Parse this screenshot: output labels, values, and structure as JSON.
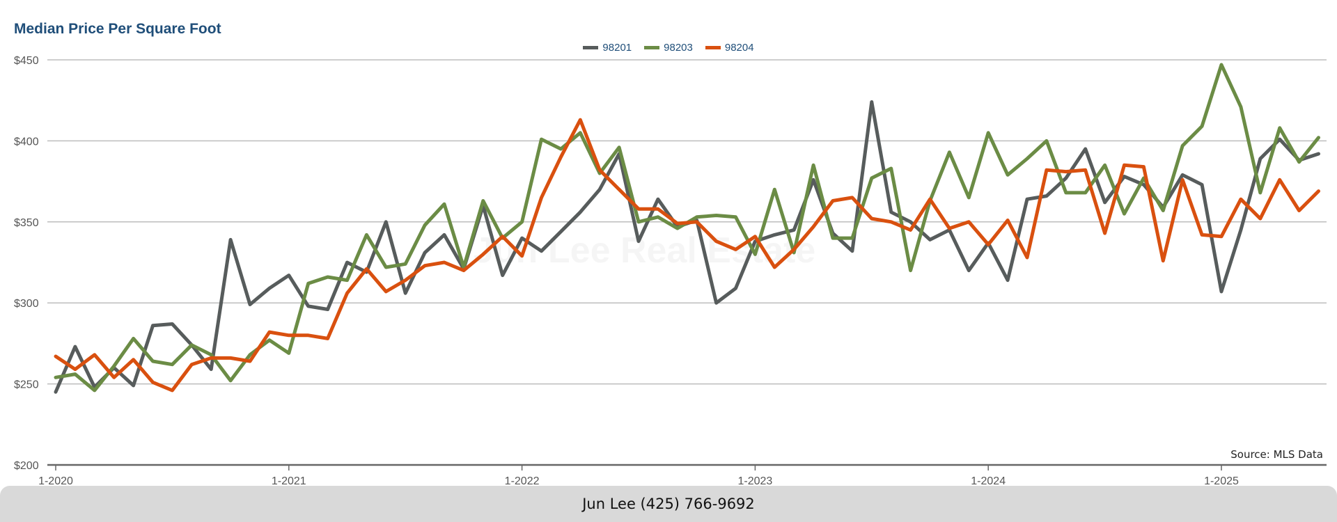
{
  "chart_data": {
    "type": "line",
    "title": "Median Price Per Square Foot",
    "ylim": [
      200,
      450
    ],
    "y_ticks": [
      "$200",
      "$250",
      "$300",
      "$350",
      "$400",
      "$450"
    ],
    "y_tick_values": [
      200,
      250,
      300,
      350,
      400,
      450
    ],
    "x_tick_labels": [
      "1-2020",
      "1-2021",
      "1-2022",
      "1-2023",
      "1-2024",
      "1-2025"
    ],
    "x_start": "1-2020",
    "x_interval": "monthly",
    "legend_position": "top-center",
    "grid": "horizontal",
    "series": [
      {
        "name": "98201",
        "color": "#575c5c",
        "values": [
          245,
          273,
          248,
          260,
          249,
          286,
          287,
          274,
          259,
          339,
          299,
          309,
          317,
          298,
          296,
          325,
          319,
          350,
          306,
          331,
          342,
          321,
          360,
          317,
          340,
          332,
          344,
          356,
          370,
          392,
          338,
          364,
          347,
          351,
          300,
          309,
          338,
          342,
          345,
          376,
          343,
          332,
          424,
          356,
          350,
          339,
          345,
          320,
          337,
          314,
          364,
          366,
          377,
          395,
          362,
          378,
          373,
          359,
          379,
          373,
          307,
          345,
          389,
          401,
          388,
          392
        ]
      },
      {
        "name": "98203",
        "color": "#6b8c45",
        "values": [
          254,
          256,
          246,
          261,
          278,
          264,
          262,
          274,
          268,
          252,
          268,
          277,
          269,
          312,
          316,
          314,
          342,
          322,
          324,
          348,
          361,
          322,
          363,
          340,
          350,
          401,
          395,
          405,
          380,
          396,
          350,
          353,
          346,
          353,
          354,
          353,
          330,
          370,
          331,
          385,
          340,
          340,
          377,
          383,
          320,
          363,
          393,
          365,
          405,
          379,
          389,
          400,
          368,
          368,
          385,
          355,
          377,
          357,
          397,
          409,
          447,
          421,
          368,
          408,
          387,
          402
        ]
      },
      {
        "name": "98204",
        "color": "#d9500f",
        "values": [
          267,
          259,
          268,
          254,
          265,
          251,
          246,
          262,
          266,
          266,
          264,
          282,
          280,
          280,
          278,
          306,
          321,
          307,
          314,
          323,
          325,
          320,
          330,
          341,
          329,
          365,
          390,
          413,
          382,
          370,
          358,
          358,
          349,
          350,
          338,
          333,
          341,
          322,
          333,
          347,
          363,
          365,
          352,
          350,
          345,
          364,
          346,
          350,
          336,
          351,
          328,
          382,
          381,
          382,
          343,
          385,
          384,
          326,
          376,
          342,
          341,
          364,
          352,
          376,
          357,
          369
        ]
      }
    ]
  },
  "source": "Source: MLS Data",
  "watermark": "Jun Lee Real Estate",
  "footer": "Jun Lee (425) 766-9692"
}
